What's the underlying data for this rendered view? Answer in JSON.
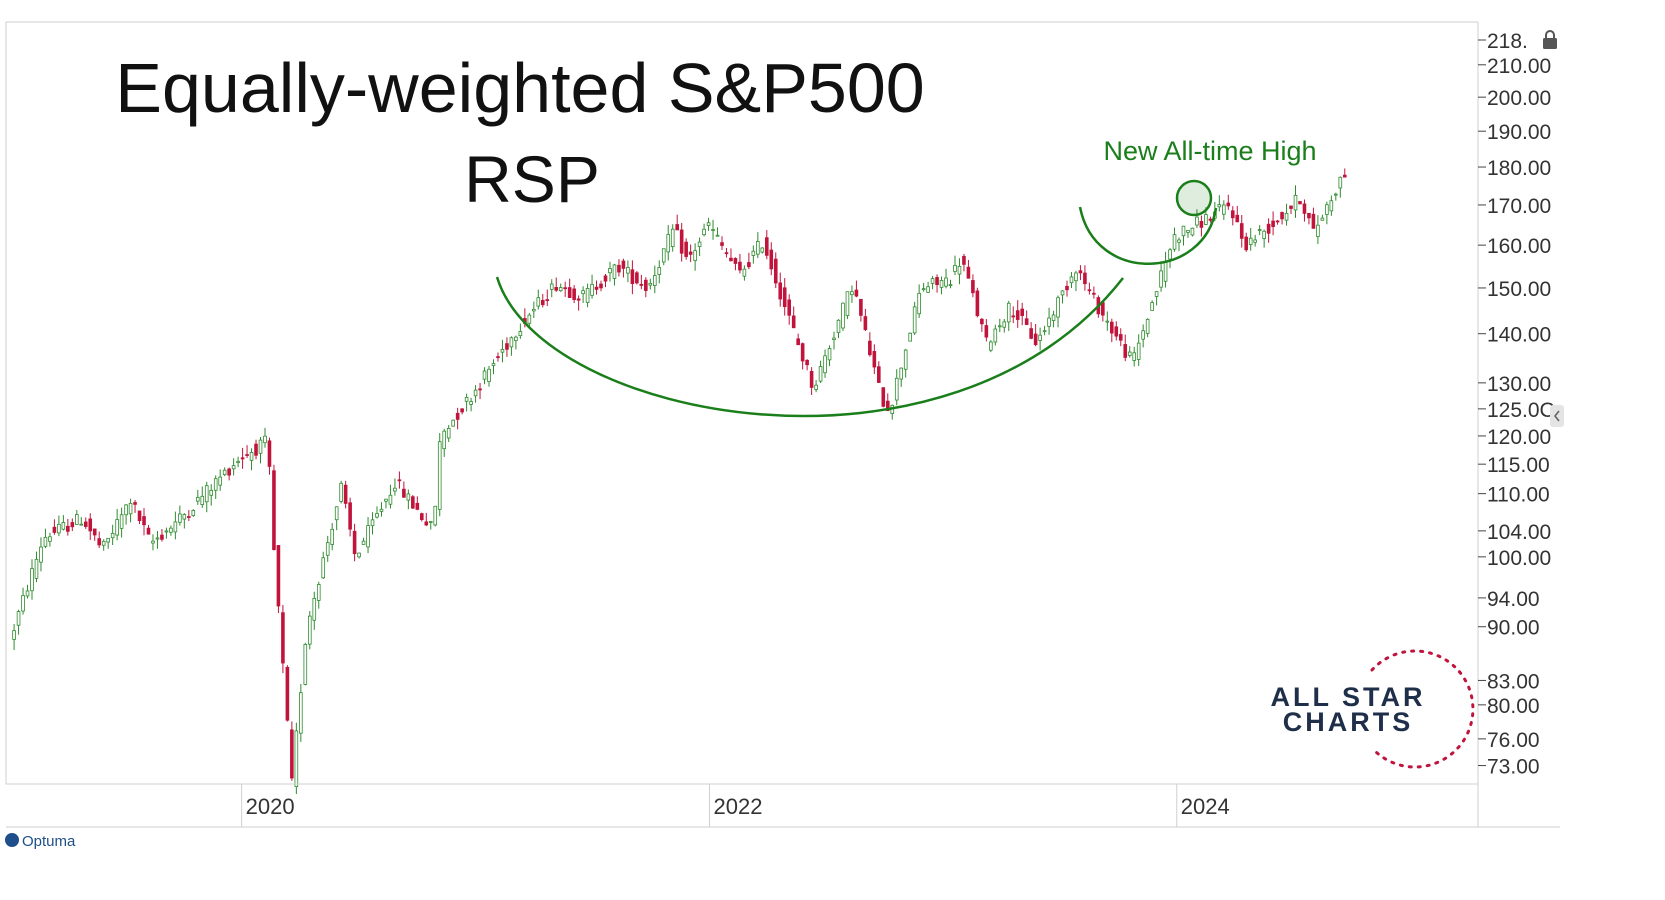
{
  "title_lines": [
    "Equally-weighted S&P500",
    "RSP"
  ],
  "annotation": "New All-time High",
  "brand": {
    "logo_line1": "ALL STAR",
    "logo_line2": "CHARTS",
    "footer_logo": "Optuma"
  },
  "colors": {
    "up": "#2e8b2e",
    "down": "#c0143c",
    "annotation": "#1a7f1a",
    "logo_text": "#1f2f4a",
    "logo_stars": "#c0143c"
  },
  "chart_data": {
    "type": "candlestick",
    "title": "Equally-weighted S&P500 RSP",
    "scale": "log",
    "ylim": [
      71,
      224
    ],
    "xlim": [
      "2019-01-01",
      "2025-03-31"
    ],
    "x_ticks": [
      "2020",
      "2022",
      "2024"
    ],
    "y_ticks": [
      "218.",
      "210.00",
      "200.00",
      "190.00",
      "180.00",
      "170.00",
      "160.00",
      "150.00",
      "140.00",
      "130.00",
      "125.0C",
      "120.00",
      "115.00",
      "110.00",
      "104.00",
      "100.00",
      "94.00",
      "90.00",
      "83.00",
      "80.00",
      "76.00",
      "73.00"
    ],
    "y_tick_values": [
      218,
      210,
      200,
      190,
      180,
      170,
      160,
      150,
      140,
      130,
      125,
      120,
      115,
      110,
      104,
      100,
      94,
      90,
      83,
      80,
      76,
      73
    ],
    "path": [
      [
        "2019-01-07",
        88
      ],
      [
        "2019-03-01",
        103
      ],
      [
        "2019-05-01",
        106
      ],
      [
        "2019-06-01",
        101
      ],
      [
        "2019-07-15",
        109
      ],
      [
        "2019-08-15",
        102
      ],
      [
        "2019-10-01",
        106
      ],
      [
        "2019-12-31",
        116
      ],
      [
        "2020-02-15",
        119
      ],
      [
        "2020-02-20",
        106
      ],
      [
        "2020-03-23",
        71
      ],
      [
        "2020-04-15",
        90
      ],
      [
        "2020-06-08",
        111
      ],
      [
        "2020-06-30",
        100
      ],
      [
        "2020-08-31",
        112
      ],
      [
        "2020-10-30",
        104
      ],
      [
        "2020-11-10",
        120
      ],
      [
        "2020-12-31",
        128
      ],
      [
        "2021-03-15",
        142
      ],
      [
        "2021-05-10",
        151
      ],
      [
        "2021-06-20",
        148
      ],
      [
        "2021-08-15",
        155
      ],
      [
        "2021-09-30",
        150
      ],
      [
        "2021-11-10",
        164
      ],
      [
        "2021-12-01",
        156
      ],
      [
        "2022-01-03",
        165
      ],
      [
        "2022-02-20",
        153
      ],
      [
        "2022-03-29",
        161
      ],
      [
        "2022-05-12",
        142
      ],
      [
        "2022-06-16",
        129
      ],
      [
        "2022-08-16",
        151
      ],
      [
        "2022-09-30",
        127
      ],
      [
        "2022-10-13",
        125
      ],
      [
        "2022-12-01",
        150
      ],
      [
        "2023-01-15",
        152
      ],
      [
        "2023-02-02",
        157
      ],
      [
        "2023-03-13",
        138
      ],
      [
        "2023-04-20",
        146
      ],
      [
        "2023-05-31",
        138
      ],
      [
        "2023-07-31",
        155
      ],
      [
        "2023-08-25",
        148
      ],
      [
        "2023-10-27",
        134
      ],
      [
        "2023-12-31",
        162
      ],
      [
        "2024-03-28",
        170
      ],
      [
        "2024-04-19",
        160
      ],
      [
        "2024-06-01",
        165
      ],
      [
        "2024-07-16",
        172
      ],
      [
        "2024-08-05",
        163
      ],
      [
        "2024-09-20",
        178
      ]
    ],
    "new_high": {
      "date": "2024-09-20",
      "value": 178
    }
  }
}
